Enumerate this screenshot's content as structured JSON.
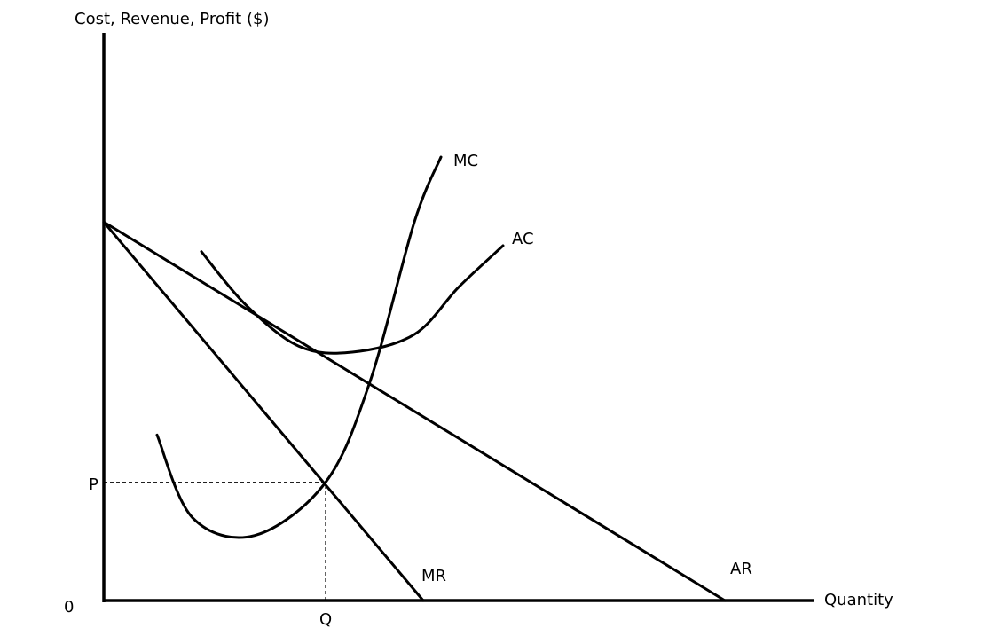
{
  "chart_data": {
    "type": "line",
    "title": "",
    "ylabel": "Cost, Revenue, Profit ($)",
    "xlabel": "Quantity",
    "origin_label": "0",
    "grid": false,
    "legend": "none",
    "tick_labels": {
      "x": [
        {
          "label": "Q",
          "value": 25
        }
      ],
      "y": [
        {
          "label": "P",
          "value": 10
        }
      ]
    },
    "xlim": [
      0,
      80
    ],
    "ylim": [
      0,
      48
    ],
    "series": [
      {
        "name": "MC",
        "points": [
          [
            6,
            14
          ],
          [
            10,
            7
          ],
          [
            17,
            5.5
          ],
          [
            25,
            10
          ],
          [
            30,
            18.5
          ],
          [
            35,
            32
          ],
          [
            38,
            37.5
          ]
        ]
      },
      {
        "name": "AC",
        "points": [
          [
            11,
            29.5
          ],
          [
            16,
            25
          ],
          [
            22,
            21.5
          ],
          [
            28,
            21
          ],
          [
            35,
            22.5
          ],
          [
            40,
            26.5
          ],
          [
            45,
            30
          ]
        ]
      },
      {
        "name": "AR",
        "points": [
          [
            0,
            32
          ],
          [
            70,
            0
          ]
        ]
      },
      {
        "name": "MR",
        "points": [
          [
            0,
            32
          ],
          [
            36,
            0
          ]
        ]
      }
    ],
    "guides": [
      {
        "label": "P",
        "from": [
          0,
          10
        ],
        "to": [
          25,
          10
        ]
      },
      {
        "label": "Q",
        "from": [
          25,
          0
        ],
        "to": [
          25,
          10
        ]
      }
    ]
  }
}
